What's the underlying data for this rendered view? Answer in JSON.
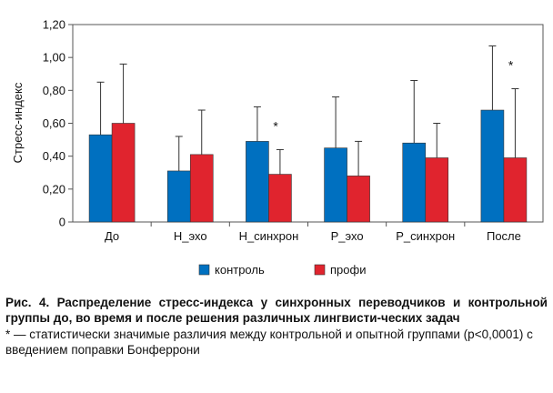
{
  "chart_data": {
    "type": "bar",
    "ylabel": "Стресс-индекс",
    "ylim": [
      0,
      1.2
    ],
    "yticks": [
      "0",
      "0,20",
      "0,40",
      "0,60",
      "0,80",
      "1,00",
      "1,20"
    ],
    "categories": [
      "До",
      "Н_эхо",
      "Н_синхрон",
      "Р_эхо",
      "Р_синхрон",
      "После"
    ],
    "series": [
      {
        "name": "контроль",
        "color": "#0070C0",
        "values": [
          0.53,
          0.31,
          0.49,
          0.45,
          0.48,
          0.68
        ],
        "err_upper": [
          0.85,
          0.52,
          0.7,
          0.76,
          0.86,
          1.07
        ]
      },
      {
        "name": "профи",
        "color": "#E0242E",
        "values": [
          0.6,
          0.41,
          0.29,
          0.28,
          0.39,
          0.39
        ],
        "err_upper": [
          0.96,
          0.68,
          0.44,
          0.49,
          0.6,
          0.81
        ]
      }
    ],
    "significance_marker": "*",
    "significant_categories": [
      "Н_синхрон",
      "После"
    ],
    "grid": false,
    "legend_position": "bottom"
  },
  "caption": {
    "title": "Рис. 4. Распределение стресс-индекса у синхронных переводчиков и контрольной группы до, во время и после решения различных лингвисти-ческих задач",
    "note": "* — статистически значимые различия между контрольной и опытной группами (р<0,0001) с введением поправки Бонферрони"
  }
}
